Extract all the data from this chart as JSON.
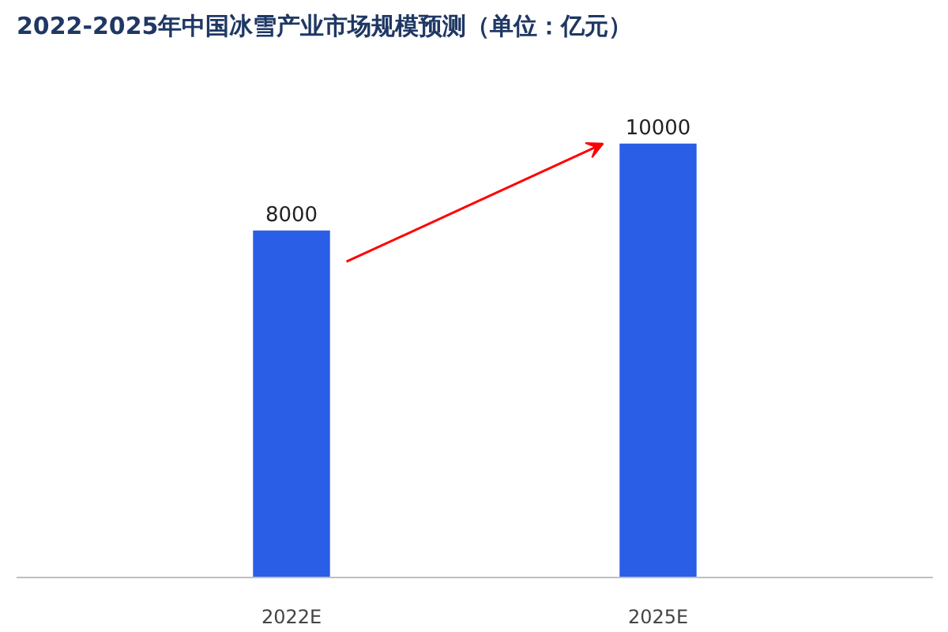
{
  "chart_data": {
    "type": "bar",
    "title": "2022-2025年中国冰雪产业市场规模预测（单位：亿元）",
    "categories": [
      "2022E",
      "2025E"
    ],
    "values": [
      8000,
      10000
    ],
    "color": "#2a5ee6",
    "tick_labels": "x",
    "data_labels": true,
    "grid": false
  }
}
